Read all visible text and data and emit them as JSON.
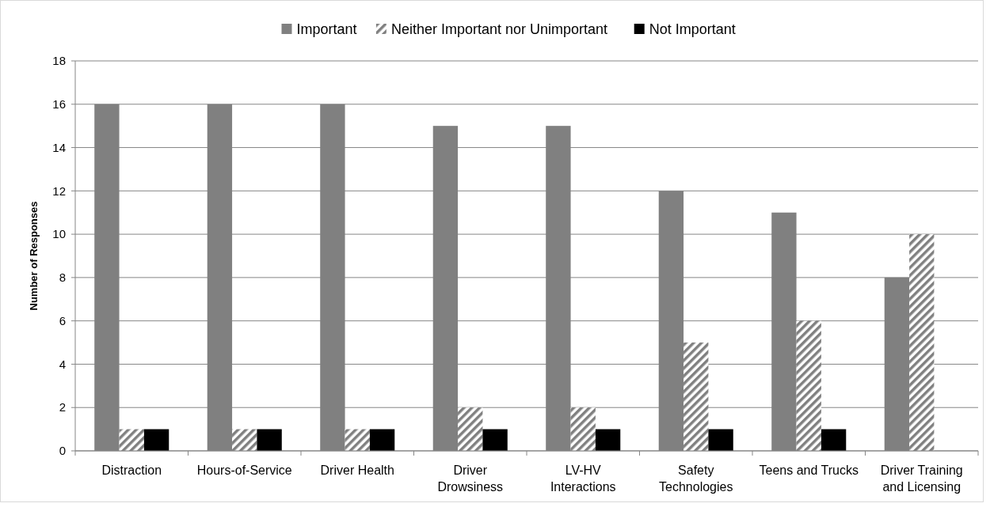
{
  "chart_data": {
    "type": "bar",
    "ylabel": "Number of Responses",
    "categories": [
      "Distraction",
      "Hours-of-Service",
      "Driver Health",
      "Driver Drowsiness",
      "LV-HV Interactions",
      "Safety Technologies",
      "Teens and Trucks",
      "Driver Training and Licensing"
    ],
    "series": [
      {
        "name": "Important",
        "color": "#808080",
        "values": [
          16,
          16,
          16,
          15,
          15,
          12,
          11,
          8
        ]
      },
      {
        "name": "Neither Important nor Unimportant",
        "color": "#808080",
        "values": [
          1,
          1,
          1,
          2,
          2,
          5,
          6,
          10
        ]
      },
      {
        "name": "Not Important",
        "color": "#000000",
        "values": [
          1,
          1,
          1,
          1,
          1,
          1,
          1,
          0
        ]
      }
    ],
    "ylim": [
      0,
      18
    ],
    "yticks": [
      0,
      2,
      4,
      6,
      8,
      10,
      12,
      14,
      16,
      18
    ],
    "grid": "y",
    "legend": "top"
  }
}
